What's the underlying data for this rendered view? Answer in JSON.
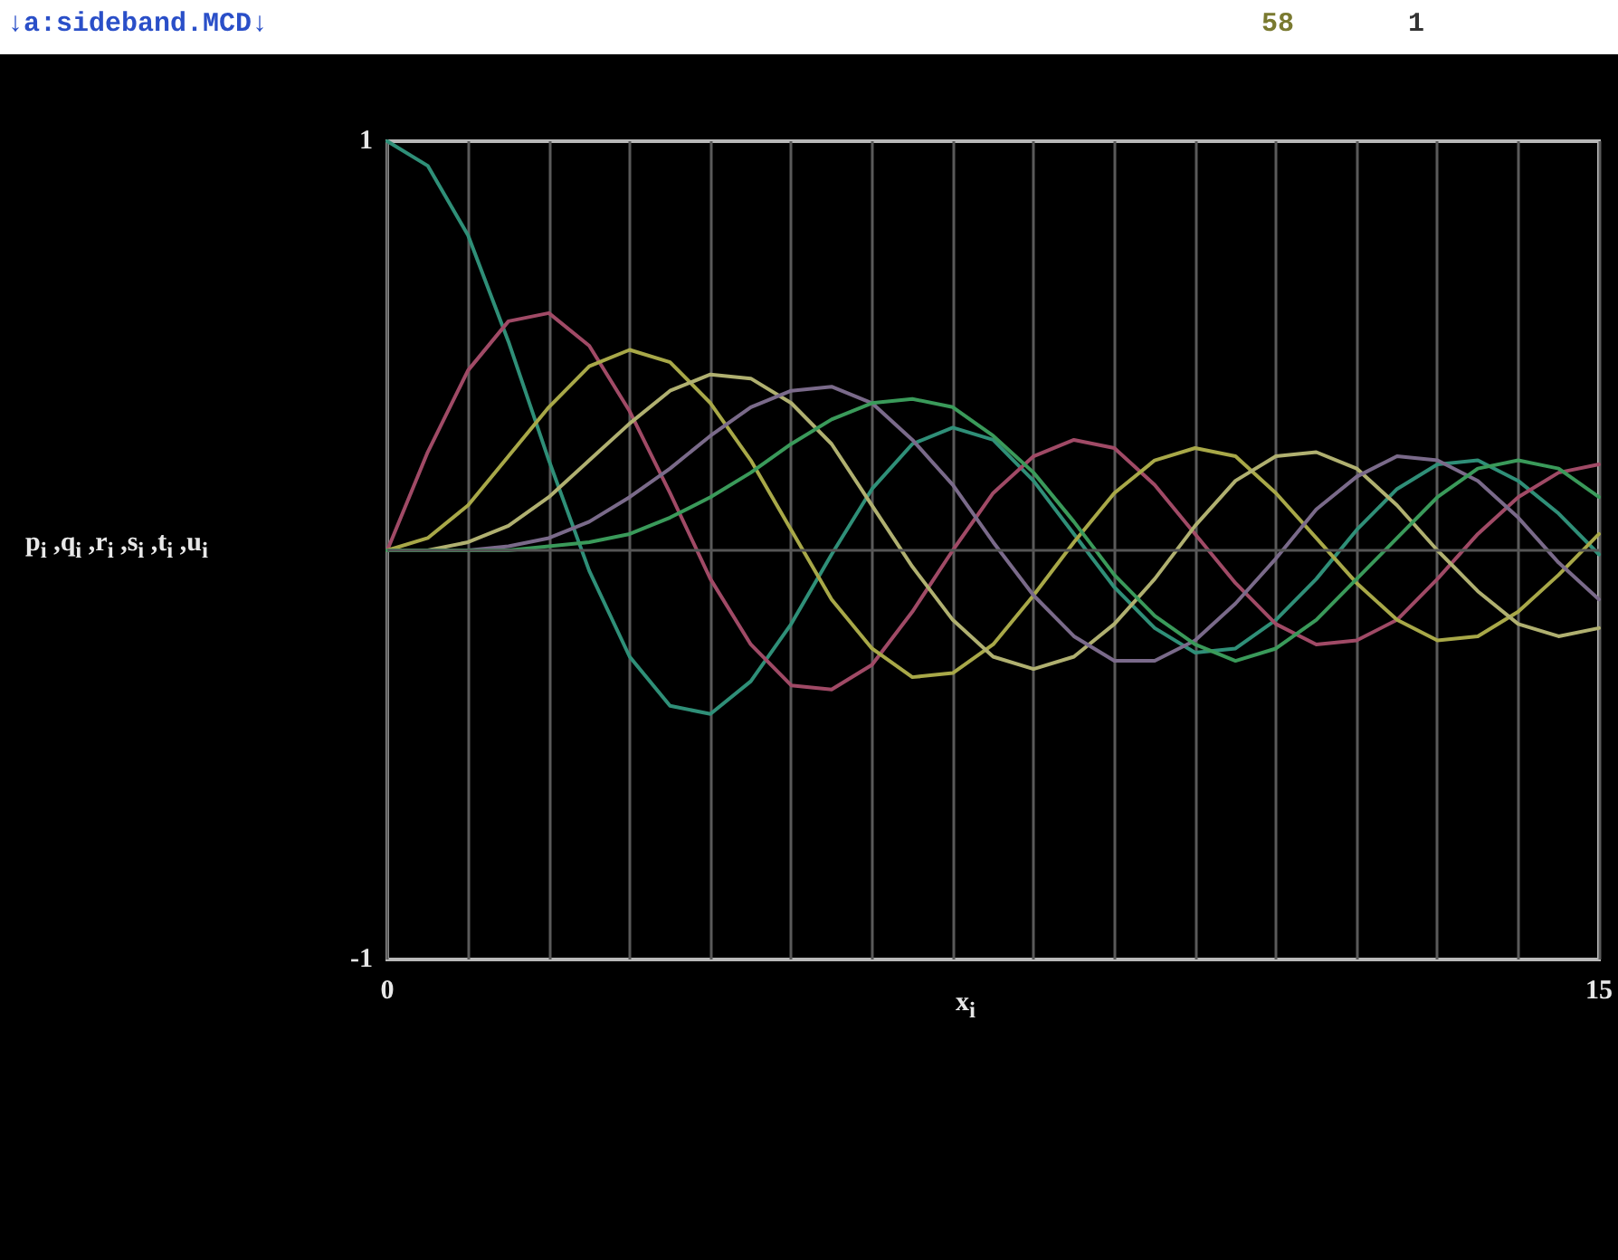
{
  "chart_data": {
    "type": "line",
    "annotations": [
      "↓a:sideband.MCD↓",
      "58",
      "1"
    ],
    "xlabel": "x$_{i}$",
    "ylabel": "p$_{i}$ ,q$_{i}$ ,r$_{i}$ ,s$_{i}$ ,t$_{i}$ ,u$_{i}$",
    "x": [
      0,
      0.5,
      1,
      1.5,
      2,
      2.5,
      3,
      3.5,
      4,
      4.5,
      5,
      5.5,
      6,
      6.5,
      7,
      7.5,
      8,
      8.5,
      9,
      9.5,
      10,
      10.5,
      11,
      11.5,
      12,
      12.5,
      13,
      13.5,
      14,
      14.5,
      15
    ],
    "series": [
      {
        "color": "#2f8f78",
        "values": [
          1,
          0.94,
          0.77,
          0.51,
          0.22,
          -0.05,
          -0.26,
          -0.38,
          -0.4,
          -0.32,
          -0.18,
          -0.01,
          0.15,
          0.26,
          0.3,
          0.27,
          0.17,
          0.04,
          -0.09,
          -0.19,
          -0.25,
          -0.24,
          -0.17,
          -0.07,
          0.05,
          0.15,
          0.21,
          0.22,
          0.17,
          0.09,
          -0.01
        ]
      },
      {
        "color": "#a04a66",
        "values": [
          0,
          0.24,
          0.44,
          0.56,
          0.58,
          0.5,
          0.34,
          0.14,
          -0.07,
          -0.23,
          -0.33,
          -0.34,
          -0.28,
          -0.15,
          0,
          0.14,
          0.23,
          0.27,
          0.25,
          0.16,
          0.04,
          -0.08,
          -0.18,
          -0.23,
          -0.22,
          -0.17,
          -0.07,
          0.04,
          0.13,
          0.19,
          0.21
        ]
      },
      {
        "color": "#a8a848",
        "values": [
          0,
          0.03,
          0.11,
          0.23,
          0.35,
          0.45,
          0.49,
          0.46,
          0.36,
          0.22,
          0.05,
          -0.12,
          -0.24,
          -0.31,
          -0.3,
          -0.23,
          -0.11,
          0.02,
          0.14,
          0.22,
          0.25,
          0.23,
          0.14,
          0.03,
          -0.08,
          -0.17,
          -0.22,
          -0.21,
          -0.15,
          -0.06,
          0.04
        ]
      },
      {
        "color": "#b0b070",
        "values": [
          0,
          0,
          0.02,
          0.06,
          0.13,
          0.22,
          0.31,
          0.39,
          0.43,
          0.42,
          0.36,
          0.26,
          0.11,
          -0.04,
          -0.17,
          -0.26,
          -0.29,
          -0.26,
          -0.18,
          -0.07,
          0.06,
          0.17,
          0.23,
          0.24,
          0.2,
          0.11,
          0,
          -0.1,
          -0.18,
          -0.21,
          -0.19
        ]
      },
      {
        "color": "#7a6a8a",
        "values": [
          0,
          0,
          0,
          0.01,
          0.03,
          0.07,
          0.13,
          0.2,
          0.28,
          0.35,
          0.39,
          0.4,
          0.36,
          0.27,
          0.16,
          0.02,
          -0.11,
          -0.21,
          -0.27,
          -0.27,
          -0.22,
          -0.13,
          -0.02,
          0.1,
          0.18,
          0.23,
          0.22,
          0.17,
          0.08,
          -0.03,
          -0.12
        ]
      },
      {
        "color": "#3a9a5a",
        "values": [
          0,
          0,
          0,
          0,
          0.01,
          0.02,
          0.04,
          0.08,
          0.13,
          0.19,
          0.26,
          0.32,
          0.36,
          0.37,
          0.35,
          0.28,
          0.19,
          0.07,
          -0.06,
          -0.16,
          -0.23,
          -0.27,
          -0.24,
          -0.17,
          -0.07,
          0.03,
          0.13,
          0.2,
          0.22,
          0.2,
          0.13
        ]
      }
    ],
    "xlim": [
      0,
      15
    ],
    "xticks": [
      0,
      {
        "value": 1,
        "label": null
      },
      {
        "value": 2,
        "label": null
      },
      {
        "value": 3,
        "label": null
      },
      {
        "value": 4,
        "label": null
      },
      {
        "value": 5,
        "label": null
      },
      {
        "value": 6,
        "label": null
      },
      {
        "value": 7,
        "label": null
      },
      {
        "value": 8,
        "label": null
      },
      {
        "value": 9,
        "label": null
      },
      {
        "value": 10,
        "label": null
      },
      {
        "value": 11,
        "label": null
      },
      {
        "value": 12,
        "label": null
      },
      {
        "value": 13,
        "label": null
      },
      {
        "value": 14,
        "label": null
      },
      15
    ],
    "ylim": [
      -1,
      1
    ],
    "yticks": [
      -1,
      1
    ],
    "ref_lines": [
      {
        "axis": "y",
        "value": 0,
        "color": "#555555"
      }
    ],
    "grid": "x",
    "marker": "none",
    "line_style": "solid"
  }
}
